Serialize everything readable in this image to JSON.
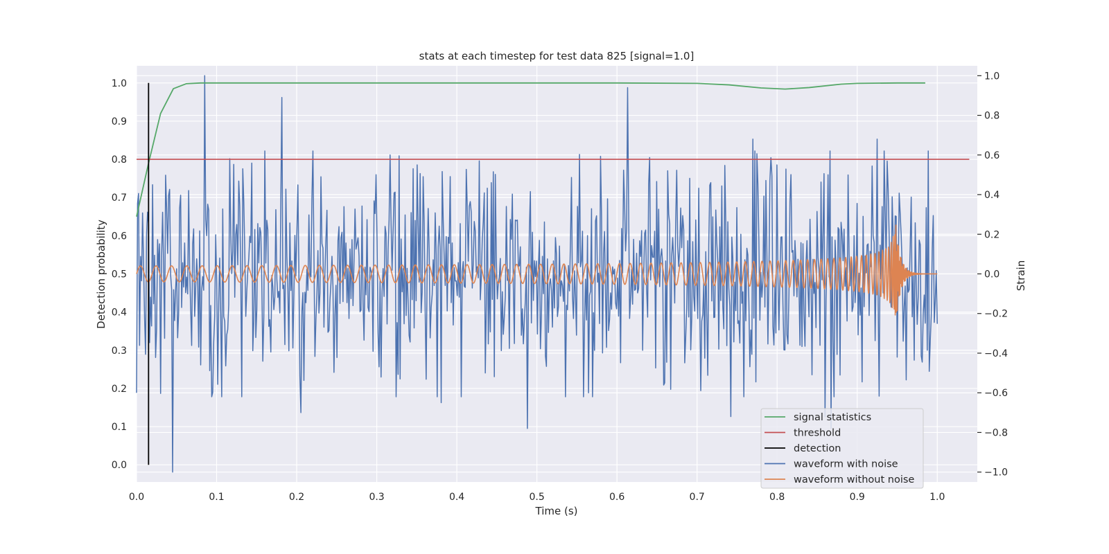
{
  "chart_data": {
    "type": "line",
    "title": "stats at each timestep for test data 825 [signal=1.0]",
    "xlabel": "Time (s)",
    "ylabel": "Detection probability",
    "y2label": "Strain",
    "xlim": [
      0.0,
      1.05
    ],
    "ylim": [
      -0.045,
      1.045
    ],
    "y2lim": [
      -1.05,
      1.05
    ],
    "xticks": [
      "0.0",
      "0.1",
      "0.2",
      "0.3",
      "0.4",
      "0.5",
      "0.6",
      "0.7",
      "0.8",
      "0.9",
      "1.0"
    ],
    "yticks": [
      "0.0",
      "0.1",
      "0.2",
      "0.3",
      "0.4",
      "0.5",
      "0.6",
      "0.7",
      "0.8",
      "0.9",
      "1.0"
    ],
    "y2ticks": [
      "−1.0",
      "−0.8",
      "−0.6",
      "−0.4",
      "−0.2",
      "0.0",
      "0.2",
      "0.4",
      "0.6",
      "0.8",
      "1.0"
    ],
    "grid": true,
    "legend_position": "lower-right",
    "series": [
      {
        "name": "signal statistics",
        "axis": "left",
        "color": "#55a868",
        "x": [
          0.0,
          0.015,
          0.03,
          0.046,
          0.062,
          0.08,
          0.1,
          0.2,
          0.3,
          0.4,
          0.5,
          0.6,
          0.7,
          0.74,
          0.78,
          0.81,
          0.84,
          0.88,
          0.9,
          0.95,
          0.985
        ],
        "y": [
          0.65,
          0.79,
          0.92,
          0.985,
          0.998,
          1.0,
          1.0,
          1.0,
          1.0,
          1.0,
          1.0,
          1.0,
          0.999,
          0.995,
          0.987,
          0.984,
          0.988,
          0.997,
          0.999,
          1.0,
          1.0
        ]
      },
      {
        "name": "threshold",
        "axis": "left",
        "color": "#c44e52",
        "x": [
          0.0,
          1.04
        ],
        "y": [
          0.8,
          0.8
        ]
      },
      {
        "name": "detection",
        "axis": "left",
        "color": "#000000",
        "x": [
          0.015,
          0.015
        ],
        "y": [
          0.0,
          1.0
        ]
      },
      {
        "name": "waveform with noise",
        "axis": "right",
        "color": "#4c72b0",
        "x_range": [
          0.0,
          1.0
        ],
        "samples": 800,
        "sigma": 0.28,
        "seed": 825,
        "peaks": [
          [
            0.0,
            -0.6
          ],
          [
            0.02,
            0.45
          ],
          [
            0.045,
            -1.0
          ],
          [
            0.085,
            1.0
          ],
          [
            0.181,
            0.89
          ],
          [
            0.205,
            -0.7
          ],
          [
            0.317,
            0.6
          ],
          [
            0.351,
            0.55
          ],
          [
            0.38,
            -0.65
          ],
          [
            0.428,
            0.57
          ],
          [
            0.488,
            -0.78
          ],
          [
            0.565,
            -0.6
          ],
          [
            0.613,
            0.94
          ],
          [
            0.66,
            -0.55
          ],
          [
            0.742,
            -0.72
          ],
          [
            0.77,
            0.68
          ],
          [
            0.8,
            0.55
          ],
          [
            0.86,
            -0.72
          ],
          [
            0.863,
            0.5
          ],
          [
            0.867,
            -0.78
          ],
          [
            0.925,
            0.68
          ],
          [
            0.95,
            -0.42
          ]
        ]
      },
      {
        "name": "waveform without noise",
        "axis": "right",
        "color": "#dd8452",
        "x_range": [
          0.0,
          1.0
        ],
        "samples": 2400,
        "merger_time": 0.948,
        "base_amplitude": 0.04,
        "peak_amplitude": 0.33
      }
    ]
  }
}
